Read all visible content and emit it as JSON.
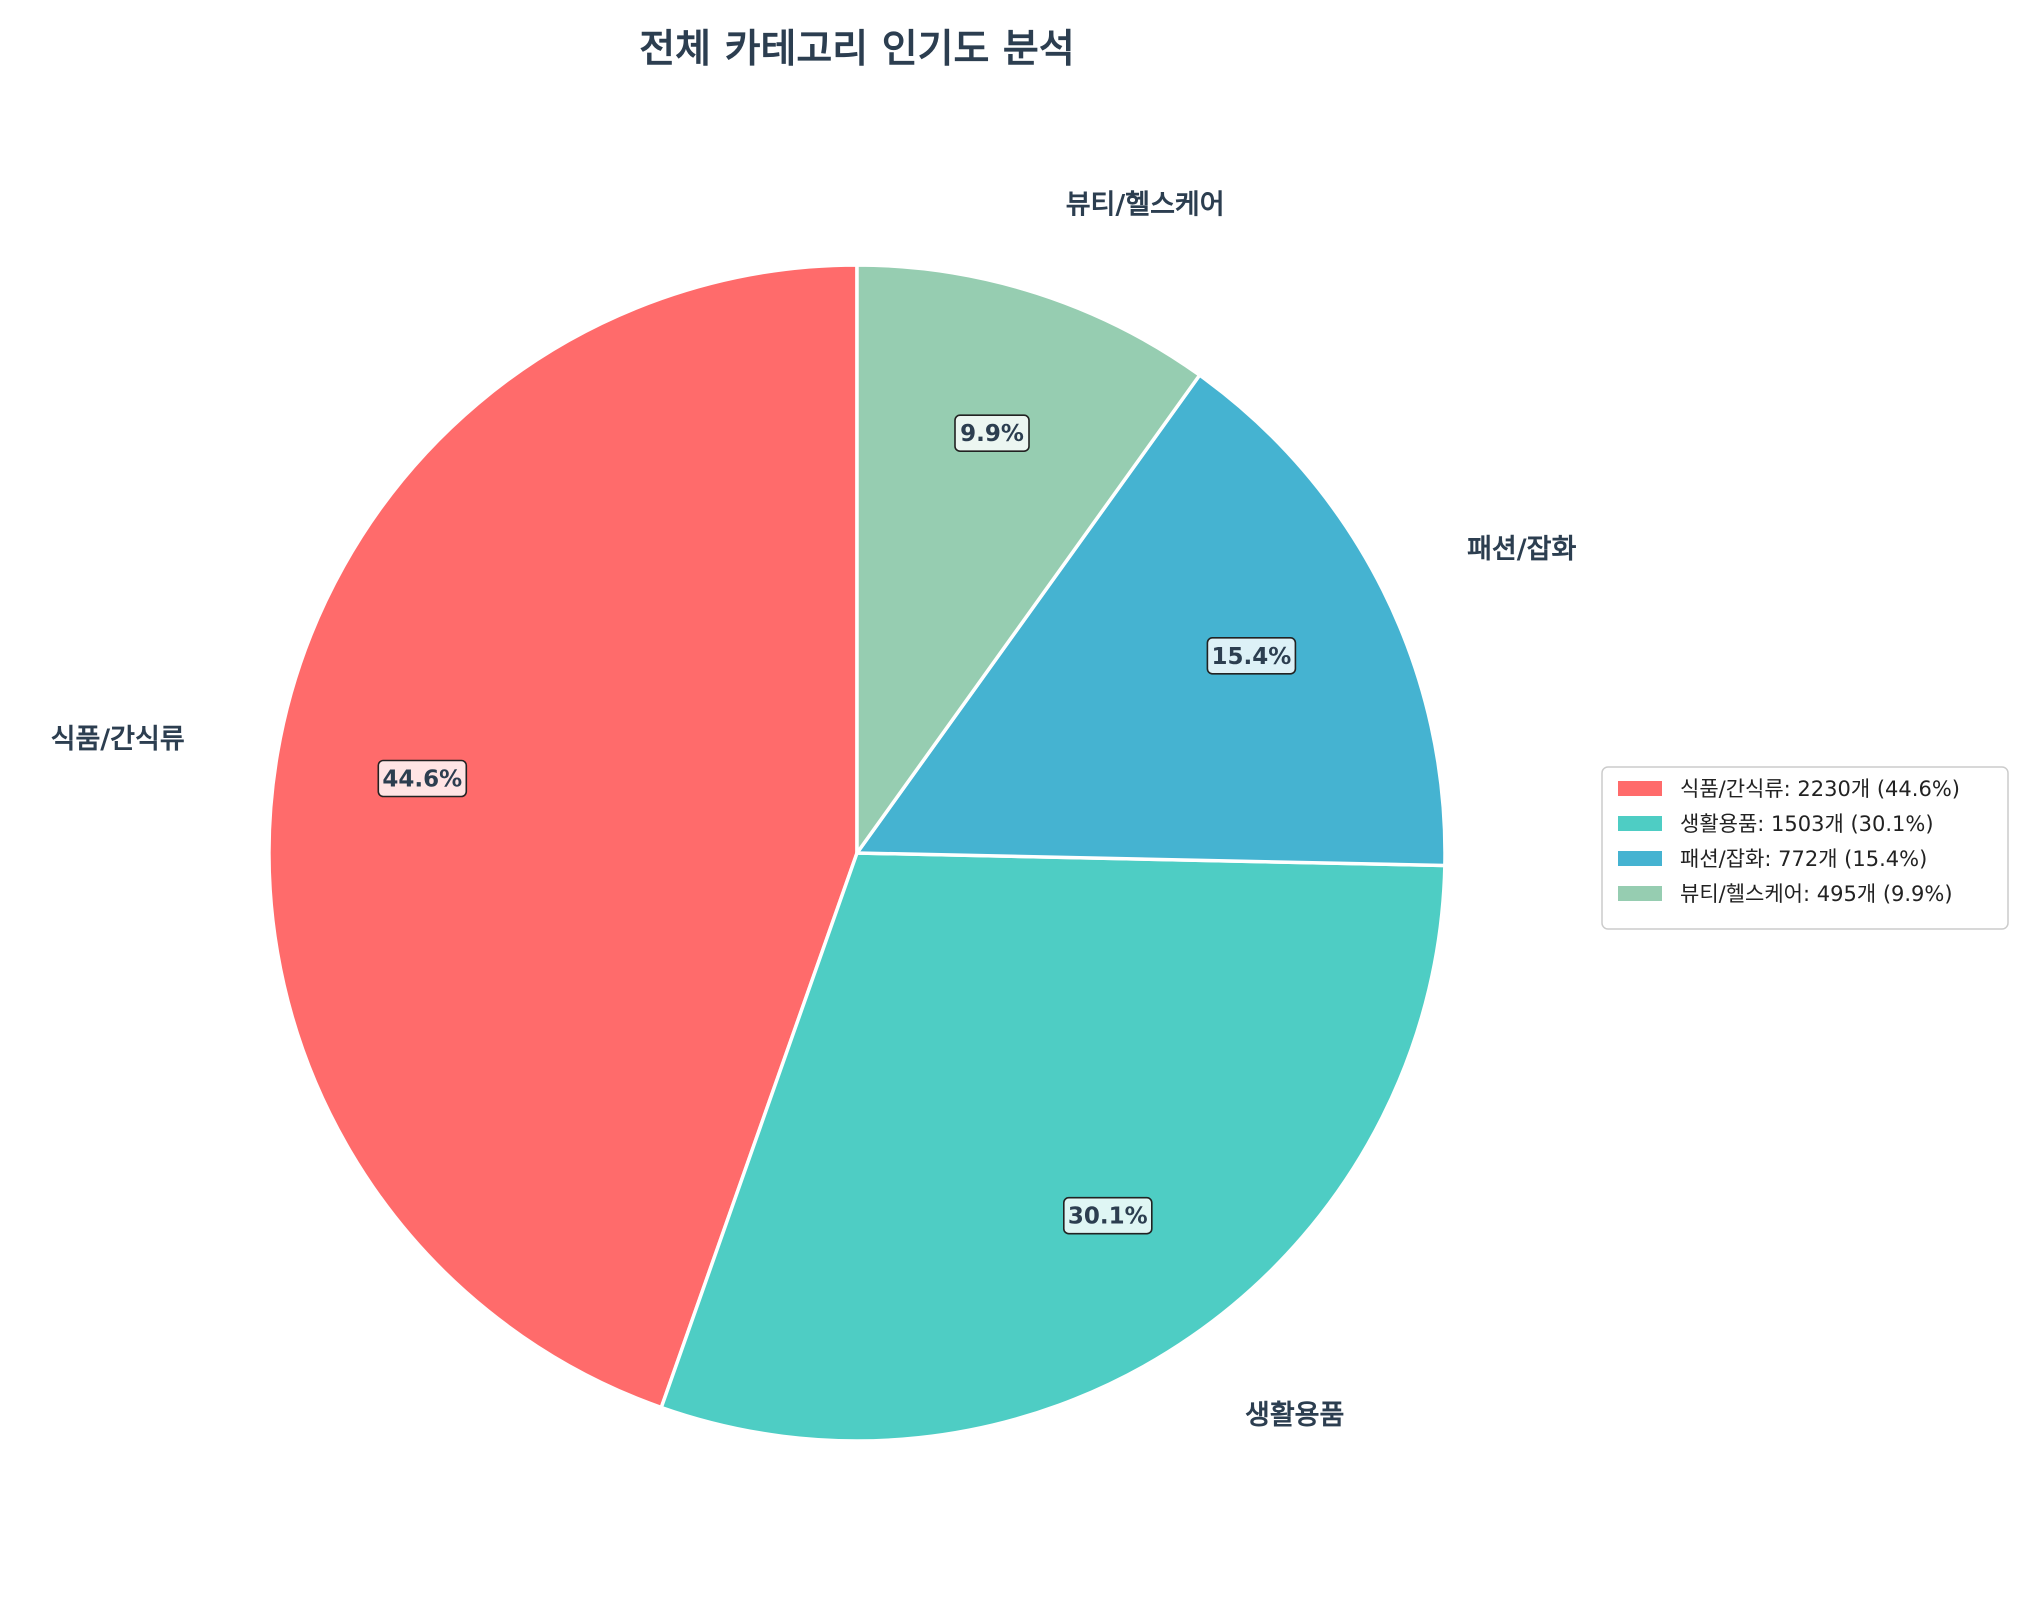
{
  "chart_data": {
    "type": "pie",
    "title": "전체 카테고리 인기도 분석",
    "unit": "개",
    "start_angle_deg": 90,
    "direction": "counterclockwise",
    "slices": [
      {
        "label": "식품/간식류",
        "value": 2230,
        "percent_label": "44.6%",
        "legend": "식품/간식류: 2230개 (44.6%)",
        "color": "#ff6b6b"
      },
      {
        "label": "생활용품",
        "value": 1503,
        "percent_label": "30.1%",
        "legend": "생활용품: 1503개 (30.1%)",
        "color": "#4ecdc4"
      },
      {
        "label": "패션/잡화",
        "value": 772,
        "percent_label": "15.4%",
        "legend": "패션/잡화: 772개 (15.4%)",
        "color": "#45b3d1"
      },
      {
        "label": "뷰티/헬스케어",
        "value": 495,
        "percent_label": "9.9%",
        "legend": "뷰티/헬스케어: 495개 (9.9%)",
        "color": "#96cdb1"
      }
    ],
    "legend_position": "right"
  }
}
